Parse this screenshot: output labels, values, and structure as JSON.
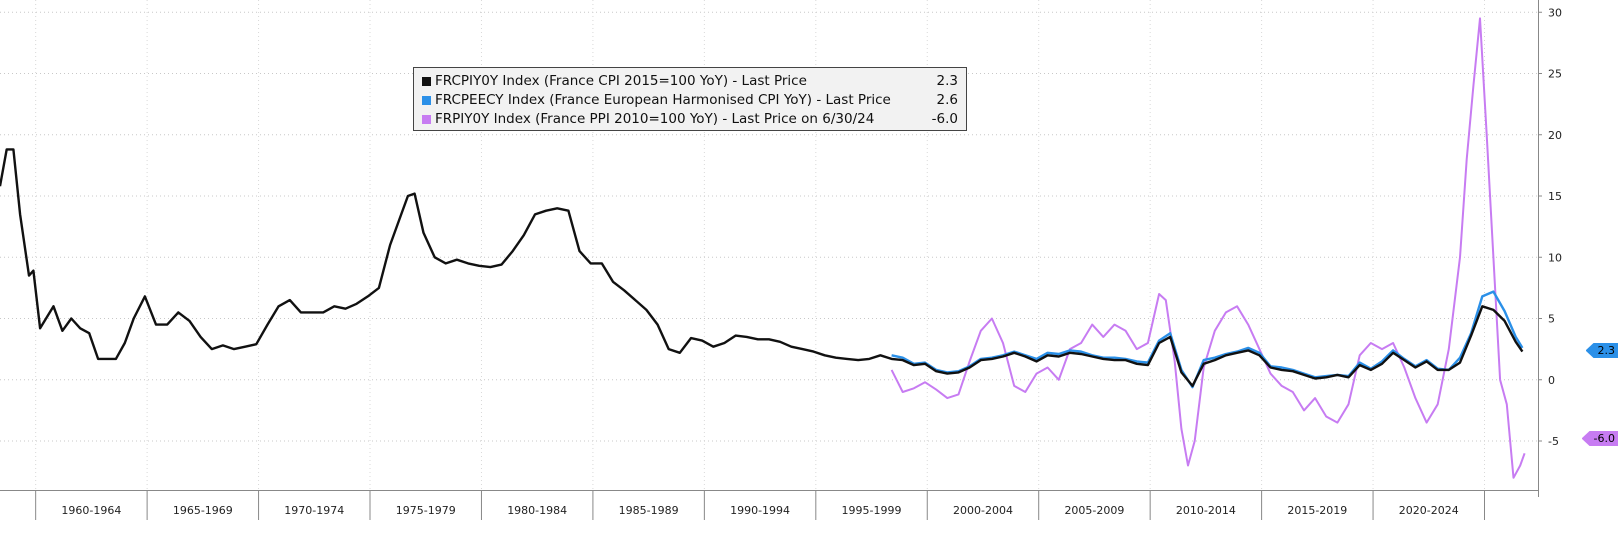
{
  "chart_data": {
    "type": "line",
    "title": "",
    "xlabel": "",
    "ylabel": "",
    "xlim": [
      1956.0,
      2025.0
    ],
    "ylim": [
      -9,
      31
    ],
    "y_axis_side": "right",
    "yticks": [
      -5,
      0,
      5,
      10,
      15,
      20,
      25,
      30
    ],
    "ytick_labels": [
      "-5",
      "0",
      "5",
      "10",
      "15",
      "20",
      "25",
      "30"
    ],
    "x_categories": [
      "1960-1964",
      "1965-1969",
      "1970-1974",
      "1975-1979",
      "1980-1984",
      "1985-1989",
      "1990-1994",
      "1995-1999",
      "2000-2004",
      "2005-2009",
      "2010-2014",
      "2015-2019",
      "2020-2024"
    ],
    "grid": "horizontal dotted",
    "legend_position": "top-center",
    "legend": [
      {
        "label": "FRCPIY0Y Index (France CPI 2015=100 YoY) - Last Price",
        "value": "2.3",
        "color": "#111111"
      },
      {
        "label": "FRCPEECY Index (France European Harmonised CPI YoY) - Last Price",
        "value": "2.6",
        "color": "#2b90e8"
      },
      {
        "label": "FRPIY0Y Index (France PPI 2010=100 YoY) - Last Price on 6/30/24",
        "value": "-6.0",
        "color": "#c77cf2"
      }
    ],
    "value_tags": {
      "cpi": "2.3",
      "ppi": "-6.0"
    },
    "series": [
      {
        "name": "FRCPIY0Y Index (France CPI 2015=100 YoY) - Last Price",
        "color": "#111111",
        "x": [
          1956.0,
          1956.3,
          1956.6,
          1956.9,
          1957.3,
          1957.5,
          1957.8,
          1958.0,
          1958.4,
          1958.8,
          1959.2,
          1959.6,
          1960.0,
          1960.4,
          1960.8,
          1961.2,
          1961.6,
          1962.0,
          1962.5,
          1963.0,
          1963.5,
          1964.0,
          1964.5,
          1965.0,
          1965.5,
          1966.0,
          1966.5,
          1967.0,
          1967.5,
          1968.0,
          1968.5,
          1969.0,
          1969.5,
          1970.0,
          1970.5,
          1971.0,
          1971.5,
          1972.0,
          1972.5,
          1973.0,
          1973.5,
          1974.0,
          1974.3,
          1974.6,
          1975.0,
          1975.5,
          1976.0,
          1976.5,
          1977.0,
          1977.5,
          1978.0,
          1978.5,
          1979.0,
          1979.5,
          1980.0,
          1980.5,
          1981.0,
          1981.5,
          1982.0,
          1982.5,
          1983.0,
          1983.5,
          1984.0,
          1984.5,
          1985.0,
          1985.5,
          1986.0,
          1986.5,
          1987.0,
          1987.5,
          1988.0,
          1988.5,
          1989.0,
          1989.5,
          1990.0,
          1990.5,
          1991.0,
          1991.5,
          1992.0,
          1992.5,
          1993.0,
          1993.5,
          1994.0,
          1994.5,
          1995.0,
          1995.5,
          1996.0,
          1996.5,
          1997.0,
          1997.5,
          1998.0,
          1998.5,
          1999.0,
          1999.5,
          2000.0,
          2000.5,
          2001.0,
          2001.5,
          2002.0,
          2002.5,
          2003.0,
          2003.5,
          2004.0,
          2004.5,
          2005.0,
          2005.5,
          2006.0,
          2006.5,
          2007.0,
          2007.5,
          2008.0,
          2008.5,
          2009.0,
          2009.5,
          2010.0,
          2010.5,
          2011.0,
          2011.5,
          2012.0,
          2012.5,
          2013.0,
          2013.5,
          2014.0,
          2014.5,
          2015.0,
          2015.5,
          2016.0,
          2016.5,
          2017.0,
          2017.5,
          2018.0,
          2018.5,
          2019.0,
          2019.5,
          2020.0,
          2020.5,
          2021.0,
          2021.5,
          2022.0,
          2022.5,
          2023.0,
          2023.5,
          2024.0,
          2024.3
        ],
        "y": [
          15.8,
          18.8,
          18.8,
          13.5,
          8.5,
          8.9,
          4.2,
          4.8,
          6.0,
          4.0,
          5.0,
          4.2,
          3.8,
          1.7,
          1.7,
          1.7,
          3.0,
          5.0,
          6.8,
          4.5,
          4.5,
          5.5,
          4.8,
          3.5,
          2.5,
          2.8,
          2.5,
          2.7,
          2.9,
          4.5,
          6.0,
          6.5,
          5.5,
          5.5,
          5.5,
          6.0,
          5.8,
          6.2,
          6.8,
          7.5,
          11.0,
          13.5,
          15.0,
          15.2,
          12.0,
          10.0,
          9.5,
          9.8,
          9.5,
          9.3,
          9.2,
          9.4,
          10.5,
          11.8,
          13.5,
          13.8,
          14.0,
          13.8,
          10.5,
          9.5,
          9.5,
          8.0,
          7.3,
          6.5,
          5.7,
          4.5,
          2.5,
          2.2,
          3.4,
          3.2,
          2.7,
          3.0,
          3.6,
          3.5,
          3.3,
          3.3,
          3.1,
          2.7,
          2.5,
          2.3,
          2.0,
          1.8,
          1.7,
          1.6,
          1.7,
          2.0,
          1.7,
          1.6,
          1.2,
          1.3,
          0.7,
          0.5,
          0.6,
          1.0,
          1.6,
          1.7,
          1.9,
          2.2,
          1.9,
          1.5,
          2.0,
          1.9,
          2.2,
          2.1,
          1.9,
          1.7,
          1.6,
          1.6,
          1.3,
          1.2,
          3.0,
          3.5,
          0.6,
          -0.5,
          1.3,
          1.6,
          2.0,
          2.2,
          2.4,
          2.0,
          1.0,
          0.8,
          0.7,
          0.4,
          0.1,
          0.2,
          0.4,
          0.2,
          1.2,
          0.8,
          1.3,
          2.2,
          1.6,
          1.0,
          1.5,
          0.8,
          0.8,
          1.4,
          3.6,
          6.0,
          5.7,
          4.8,
          3.1,
          2.3
        ]
      },
      {
        "name": "FRCPEECY Index (France European Harmonised CPI YoY) - Last Price",
        "color": "#2b90e8",
        "x": [
          1996.0,
          1996.5,
          1997.0,
          1997.5,
          1998.0,
          1998.5,
          1999.0,
          1999.5,
          2000.0,
          2000.5,
          2001.0,
          2001.5,
          2002.0,
          2002.5,
          2003.0,
          2003.5,
          2004.0,
          2004.5,
          2005.0,
          2005.5,
          2006.0,
          2006.5,
          2007.0,
          2007.5,
          2008.0,
          2008.5,
          2009.0,
          2009.5,
          2010.0,
          2010.5,
          2011.0,
          2011.5,
          2012.0,
          2012.5,
          2013.0,
          2013.5,
          2014.0,
          2014.5,
          2015.0,
          2015.5,
          2016.0,
          2016.5,
          2017.0,
          2017.5,
          2018.0,
          2018.5,
          2019.0,
          2019.5,
          2020.0,
          2020.5,
          2021.0,
          2021.5,
          2022.0,
          2022.5,
          2023.0,
          2023.5,
          2024.0,
          2024.3
        ],
        "y": [
          2.0,
          1.8,
          1.3,
          1.4,
          0.8,
          0.6,
          0.7,
          1.1,
          1.7,
          1.8,
          2.0,
          2.3,
          2.0,
          1.7,
          2.2,
          2.1,
          2.4,
          2.3,
          2.0,
          1.8,
          1.8,
          1.7,
          1.5,
          1.4,
          3.2,
          3.8,
          0.8,
          -0.6,
          1.6,
          1.8,
          2.1,
          2.3,
          2.6,
          2.2,
          1.1,
          1.0,
          0.8,
          0.5,
          0.2,
          0.3,
          0.4,
          0.3,
          1.4,
          0.9,
          1.5,
          2.4,
          1.7,
          1.1,
          1.6,
          0.9,
          0.8,
          1.8,
          3.8,
          6.8,
          7.2,
          5.6,
          3.5,
          2.6
        ]
      },
      {
        "name": "FRPIY0Y Index (France PPI 2010=100 YoY) - Last Price on 6/30/24",
        "color": "#c77cf2",
        "x": [
          1996.0,
          1996.5,
          1997.0,
          1997.5,
          1998.0,
          1998.5,
          1999.0,
          1999.5,
          2000.0,
          2000.5,
          2001.0,
          2001.5,
          2002.0,
          2002.5,
          2003.0,
          2003.5,
          2004.0,
          2004.5,
          2005.0,
          2005.5,
          2006.0,
          2006.5,
          2007.0,
          2007.5,
          2008.0,
          2008.3,
          2008.7,
          2009.0,
          2009.3,
          2009.6,
          2010.0,
          2010.5,
          2011.0,
          2011.5,
          2012.0,
          2012.5,
          2013.0,
          2013.5,
          2014.0,
          2014.5,
          2015.0,
          2015.5,
          2016.0,
          2016.5,
          2017.0,
          2017.5,
          2018.0,
          2018.5,
          2019.0,
          2019.5,
          2020.0,
          2020.5,
          2021.0,
          2021.5,
          2021.8,
          2022.1,
          2022.4,
          2022.7,
          2023.0,
          2023.3,
          2023.6,
          2023.9,
          2024.2,
          2024.4
        ],
        "y": [
          0.8,
          -1.0,
          -0.7,
          -0.2,
          -0.8,
          -1.5,
          -1.2,
          1.5,
          4.0,
          5.0,
          3.0,
          -0.5,
          -1.0,
          0.5,
          1.0,
          0.0,
          2.5,
          3.0,
          4.5,
          3.5,
          4.5,
          4.0,
          2.5,
          3.0,
          7.0,
          6.5,
          1.5,
          -4.0,
          -7.0,
          -5.0,
          1.0,
          4.0,
          5.5,
          6.0,
          4.5,
          2.5,
          0.5,
          -0.5,
          -1.0,
          -2.5,
          -1.5,
          -3.0,
          -3.5,
          -2.0,
          2.0,
          3.0,
          2.5,
          3.0,
          1.0,
          -1.5,
          -3.5,
          -2.0,
          2.5,
          10.0,
          18.0,
          24.0,
          29.5,
          20.0,
          10.0,
          0.0,
          -2.0,
          -8.0,
          -7.0,
          -6.0
        ]
      }
    ]
  }
}
